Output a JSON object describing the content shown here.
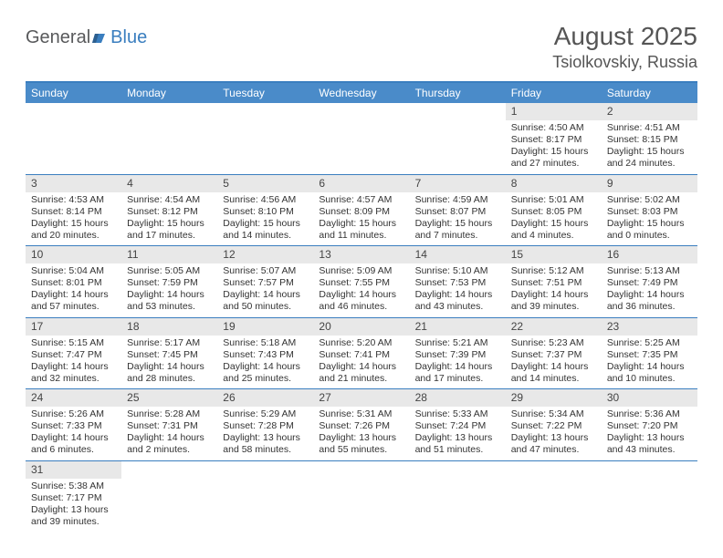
{
  "logo": {
    "text_a": "General",
    "text_b": "Blue"
  },
  "header": {
    "title": "August 2025",
    "location": "Tsiolkovskiy, Russia"
  },
  "colors": {
    "header_bg": "#4a8bc9",
    "border": "#3a7ebf",
    "daynum_bg": "#e8e8e8",
    "text": "#333333",
    "logo_gray": "#58595b",
    "logo_blue": "#3a7ebf"
  },
  "day_names": [
    "Sunday",
    "Monday",
    "Tuesday",
    "Wednesday",
    "Thursday",
    "Friday",
    "Saturday"
  ],
  "weeks": [
    [
      null,
      null,
      null,
      null,
      null,
      {
        "d": "1",
        "sr": "Sunrise: 4:50 AM",
        "ss": "Sunset: 8:17 PM",
        "dl": "Daylight: 15 hours and 27 minutes."
      },
      {
        "d": "2",
        "sr": "Sunrise: 4:51 AM",
        "ss": "Sunset: 8:15 PM",
        "dl": "Daylight: 15 hours and 24 minutes."
      }
    ],
    [
      {
        "d": "3",
        "sr": "Sunrise: 4:53 AM",
        "ss": "Sunset: 8:14 PM",
        "dl": "Daylight: 15 hours and 20 minutes."
      },
      {
        "d": "4",
        "sr": "Sunrise: 4:54 AM",
        "ss": "Sunset: 8:12 PM",
        "dl": "Daylight: 15 hours and 17 minutes."
      },
      {
        "d": "5",
        "sr": "Sunrise: 4:56 AM",
        "ss": "Sunset: 8:10 PM",
        "dl": "Daylight: 15 hours and 14 minutes."
      },
      {
        "d": "6",
        "sr": "Sunrise: 4:57 AM",
        "ss": "Sunset: 8:09 PM",
        "dl": "Daylight: 15 hours and 11 minutes."
      },
      {
        "d": "7",
        "sr": "Sunrise: 4:59 AM",
        "ss": "Sunset: 8:07 PM",
        "dl": "Daylight: 15 hours and 7 minutes."
      },
      {
        "d": "8",
        "sr": "Sunrise: 5:01 AM",
        "ss": "Sunset: 8:05 PM",
        "dl": "Daylight: 15 hours and 4 minutes."
      },
      {
        "d": "9",
        "sr": "Sunrise: 5:02 AM",
        "ss": "Sunset: 8:03 PM",
        "dl": "Daylight: 15 hours and 0 minutes."
      }
    ],
    [
      {
        "d": "10",
        "sr": "Sunrise: 5:04 AM",
        "ss": "Sunset: 8:01 PM",
        "dl": "Daylight: 14 hours and 57 minutes."
      },
      {
        "d": "11",
        "sr": "Sunrise: 5:05 AM",
        "ss": "Sunset: 7:59 PM",
        "dl": "Daylight: 14 hours and 53 minutes."
      },
      {
        "d": "12",
        "sr": "Sunrise: 5:07 AM",
        "ss": "Sunset: 7:57 PM",
        "dl": "Daylight: 14 hours and 50 minutes."
      },
      {
        "d": "13",
        "sr": "Sunrise: 5:09 AM",
        "ss": "Sunset: 7:55 PM",
        "dl": "Daylight: 14 hours and 46 minutes."
      },
      {
        "d": "14",
        "sr": "Sunrise: 5:10 AM",
        "ss": "Sunset: 7:53 PM",
        "dl": "Daylight: 14 hours and 43 minutes."
      },
      {
        "d": "15",
        "sr": "Sunrise: 5:12 AM",
        "ss": "Sunset: 7:51 PM",
        "dl": "Daylight: 14 hours and 39 minutes."
      },
      {
        "d": "16",
        "sr": "Sunrise: 5:13 AM",
        "ss": "Sunset: 7:49 PM",
        "dl": "Daylight: 14 hours and 36 minutes."
      }
    ],
    [
      {
        "d": "17",
        "sr": "Sunrise: 5:15 AM",
        "ss": "Sunset: 7:47 PM",
        "dl": "Daylight: 14 hours and 32 minutes."
      },
      {
        "d": "18",
        "sr": "Sunrise: 5:17 AM",
        "ss": "Sunset: 7:45 PM",
        "dl": "Daylight: 14 hours and 28 minutes."
      },
      {
        "d": "19",
        "sr": "Sunrise: 5:18 AM",
        "ss": "Sunset: 7:43 PM",
        "dl": "Daylight: 14 hours and 25 minutes."
      },
      {
        "d": "20",
        "sr": "Sunrise: 5:20 AM",
        "ss": "Sunset: 7:41 PM",
        "dl": "Daylight: 14 hours and 21 minutes."
      },
      {
        "d": "21",
        "sr": "Sunrise: 5:21 AM",
        "ss": "Sunset: 7:39 PM",
        "dl": "Daylight: 14 hours and 17 minutes."
      },
      {
        "d": "22",
        "sr": "Sunrise: 5:23 AM",
        "ss": "Sunset: 7:37 PM",
        "dl": "Daylight: 14 hours and 14 minutes."
      },
      {
        "d": "23",
        "sr": "Sunrise: 5:25 AM",
        "ss": "Sunset: 7:35 PM",
        "dl": "Daylight: 14 hours and 10 minutes."
      }
    ],
    [
      {
        "d": "24",
        "sr": "Sunrise: 5:26 AM",
        "ss": "Sunset: 7:33 PM",
        "dl": "Daylight: 14 hours and 6 minutes."
      },
      {
        "d": "25",
        "sr": "Sunrise: 5:28 AM",
        "ss": "Sunset: 7:31 PM",
        "dl": "Daylight: 14 hours and 2 minutes."
      },
      {
        "d": "26",
        "sr": "Sunrise: 5:29 AM",
        "ss": "Sunset: 7:28 PM",
        "dl": "Daylight: 13 hours and 58 minutes."
      },
      {
        "d": "27",
        "sr": "Sunrise: 5:31 AM",
        "ss": "Sunset: 7:26 PM",
        "dl": "Daylight: 13 hours and 55 minutes."
      },
      {
        "d": "28",
        "sr": "Sunrise: 5:33 AM",
        "ss": "Sunset: 7:24 PM",
        "dl": "Daylight: 13 hours and 51 minutes."
      },
      {
        "d": "29",
        "sr": "Sunrise: 5:34 AM",
        "ss": "Sunset: 7:22 PM",
        "dl": "Daylight: 13 hours and 47 minutes."
      },
      {
        "d": "30",
        "sr": "Sunrise: 5:36 AM",
        "ss": "Sunset: 7:20 PM",
        "dl": "Daylight: 13 hours and 43 minutes."
      }
    ],
    [
      {
        "d": "31",
        "sr": "Sunrise: 5:38 AM",
        "ss": "Sunset: 7:17 PM",
        "dl": "Daylight: 13 hours and 39 minutes."
      },
      null,
      null,
      null,
      null,
      null,
      null
    ]
  ]
}
